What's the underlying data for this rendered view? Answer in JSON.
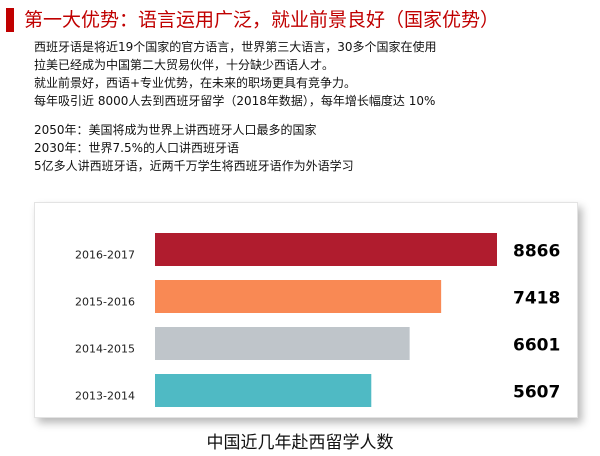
{
  "header": {
    "title": "第一大优势：语言运用广泛，就业前景良好（国家优势）",
    "title_color": "#c00000",
    "accent_color": "#c00000"
  },
  "intro": {
    "lines": [
      "西班牙语是将近19个国家的官方语言，世界第三大语言，30多个国家在使用",
      "拉美已经成为中国第二大贸易伙伴，十分缺少西语人才。",
      "就业前景好，西语+专业优势，在未来的职场更具有竞争力。",
      "每年吸引近 8000人去到西班牙留学（2018年数据），每年增长幅度达 10%"
    ]
  },
  "forecast": {
    "lines": [
      "2050年：美国将成为世界上讲西班牙人口最多的国家",
      "2030年：世界7.5%的人口讲西班牙语",
      "5亿多人讲西班牙语，近两千万学生将西班牙语作为外语学习"
    ]
  },
  "chart_data": {
    "type": "bar",
    "orientation": "horizontal",
    "title": "中国近几年赴西留学人数",
    "categories": [
      "2016-2017",
      "2015-2016",
      "2014-2015",
      "2013-2014"
    ],
    "values": [
      8866,
      7418,
      6601,
      5607
    ],
    "bar_colors": [
      "#b01c2e",
      "#f98954",
      "#bfc5ca",
      "#4fbac4"
    ],
    "grid": false,
    "legend": "none"
  }
}
